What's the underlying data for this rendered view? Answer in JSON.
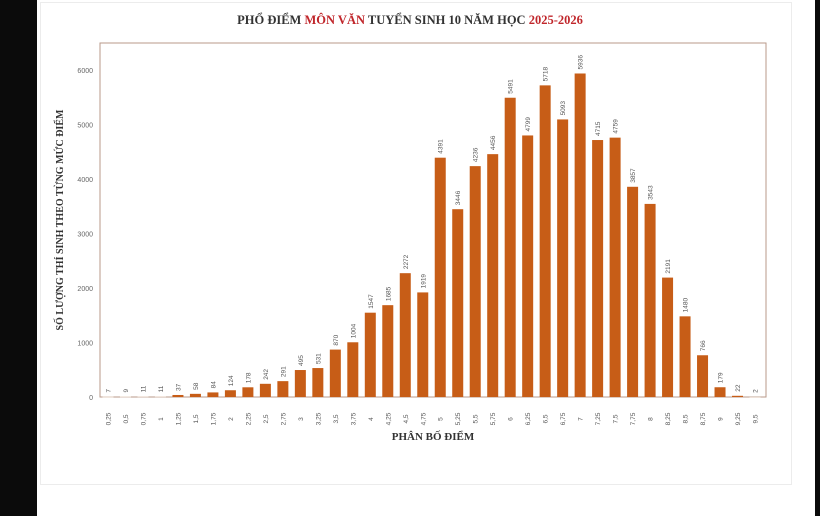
{
  "chart_data": {
    "type": "bar",
    "title_parts": [
      "PHỔ ĐIỂM ",
      "MÔN VĂN",
      " TUYỂN SINH 10 NĂM HỌC ",
      "2025-2026"
    ],
    "xlabel": "PHÂN BỐ ĐIỂM",
    "ylabel": "SỐ LƯỢNG THÍ SINH THEO TỪNG MỨC ĐIỂM",
    "categories": [
      "0,25",
      "0,5",
      "0,75",
      "1",
      "1,25",
      "1,5",
      "1,75",
      "2",
      "2,25",
      "2,5",
      "2,75",
      "3",
      "3,25",
      "3,5",
      "3,75",
      "4",
      "4,25",
      "4,5",
      "4,75",
      "5",
      "5,25",
      "5,5",
      "5,75",
      "6",
      "6,25",
      "6,5",
      "6,75",
      "7",
      "7,25",
      "7,5",
      "7,75",
      "8",
      "8,25",
      "8,5",
      "8,75",
      "9",
      "9,25",
      "9,5"
    ],
    "values": [
      7,
      9,
      11,
      11,
      37,
      58,
      84,
      124,
      178,
      242,
      291,
      495,
      531,
      870,
      1004,
      1547,
      1685,
      2272,
      1919,
      4391,
      3446,
      4236,
      4456,
      5491,
      4799,
      5718,
      5093,
      5936,
      4715,
      4759,
      3857,
      3543,
      2191,
      1480,
      766,
      179,
      22,
      2
    ],
    "ylim": [
      0,
      6500
    ],
    "yticks": [
      0,
      1000,
      2000,
      3000,
      4000,
      5000,
      6000
    ],
    "grid": false,
    "legend": "none",
    "colors": {
      "bar": "#c75d17",
      "title_highlight": "#c0262b",
      "frame": "#b89a8a"
    }
  }
}
